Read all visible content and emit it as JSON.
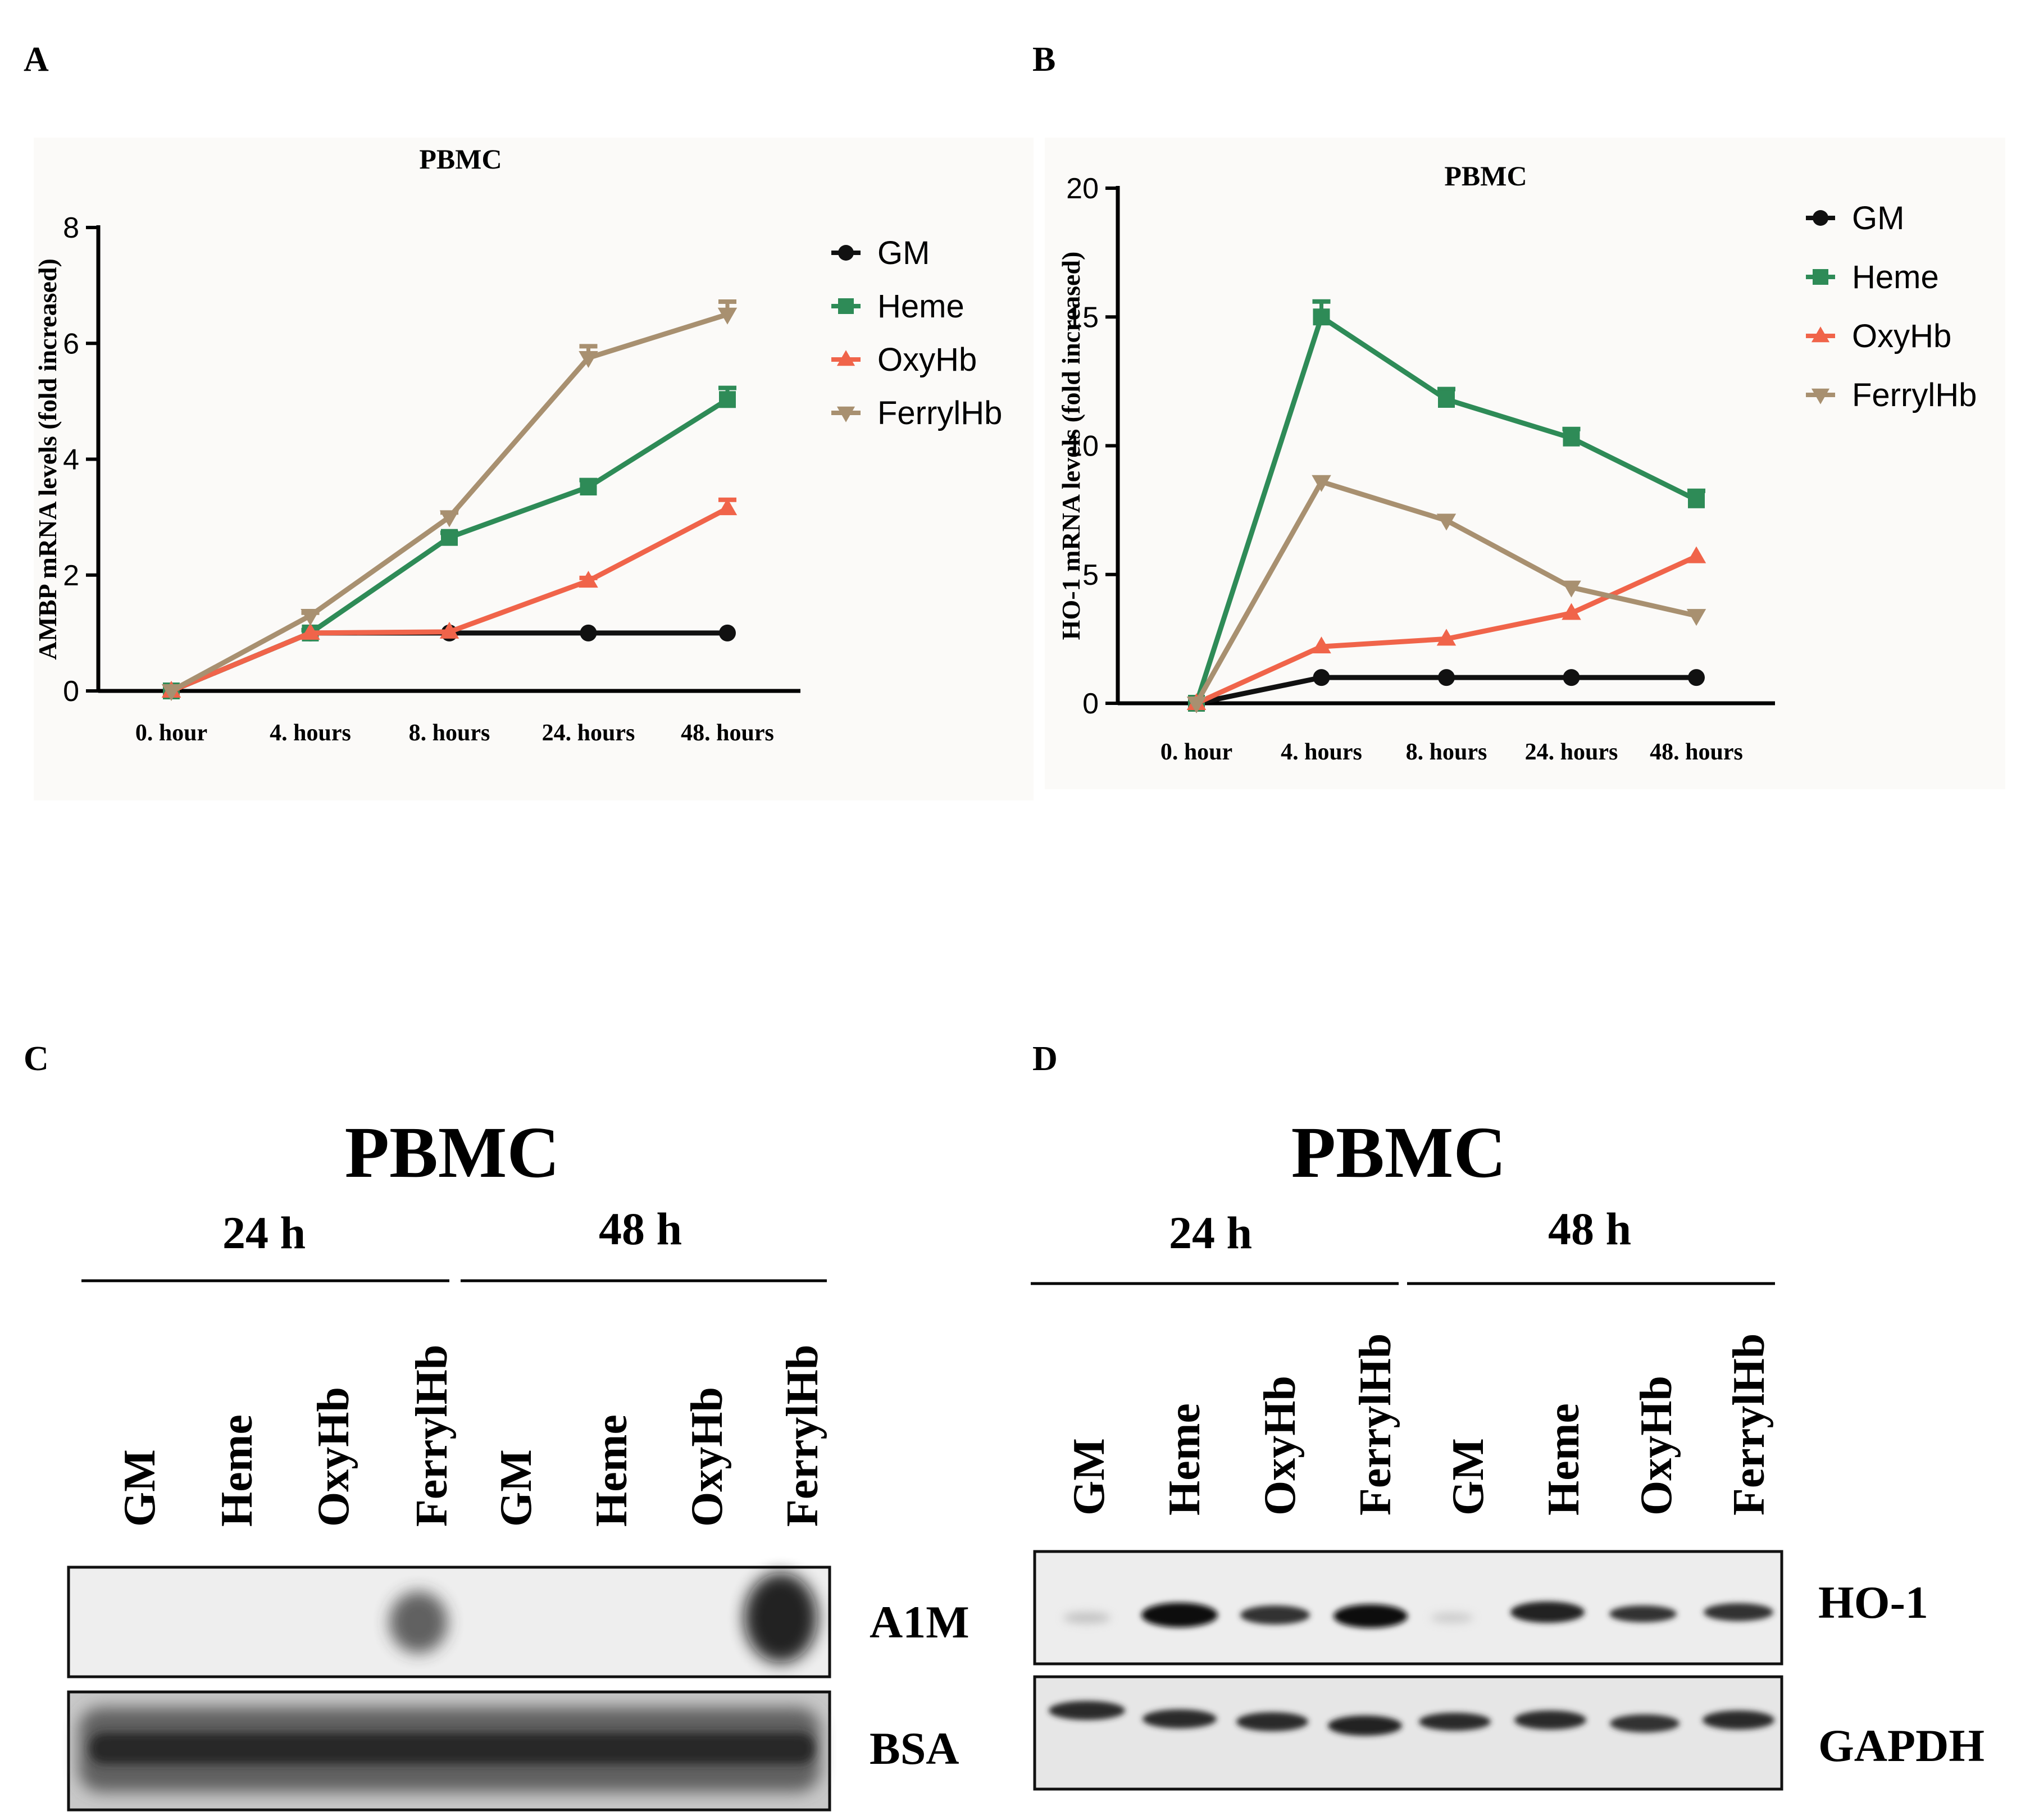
{
  "figure": {
    "panels": {
      "A": {
        "letter": "A"
      },
      "B": {
        "letter": "B"
      },
      "C": {
        "letter": "C",
        "title": "PBMC",
        "groups": [
          "24 h",
          "48 h"
        ],
        "lanes": [
          "GM",
          "Heme",
          "OxyHb",
          "FerrylHb",
          "GM",
          "Heme",
          "OxyHb",
          "FerrylHb"
        ],
        "blot_labels": [
          "A1M",
          "BSA"
        ]
      },
      "D": {
        "letter": "D",
        "title": "PBMC",
        "groups": [
          "24 h",
          "48 h"
        ],
        "lanes": [
          "GM",
          "Heme",
          "OxyHb",
          "FerrylHb",
          "GM",
          "Heme",
          "OxyHb",
          "FerrylHb"
        ],
        "blot_labels": [
          "HO-1",
          "GAPDH"
        ]
      }
    },
    "colors": {
      "GM": "#111111",
      "Heme": "#2e8b57",
      "OxyHb": "#f0644a",
      "FerrylHb": "#a89070"
    }
  },
  "chart_data": [
    {
      "type": "line",
      "title": "PBMC",
      "ylabel": "AMBP mRNA levels (fold increased)",
      "xlabel": "",
      "categories": [
        "0. hour",
        "4. hours",
        "8. hours",
        "24. hours",
        "48. hours"
      ],
      "ylim": [
        0,
        8
      ],
      "yticks": [
        0,
        2,
        4,
        6,
        8
      ],
      "legend_position": "right",
      "series": [
        {
          "name": "GM",
          "marker": "circle",
          "color": "#111111",
          "values": [
            0,
            1.0,
            1.0,
            1.0,
            1.0
          ],
          "errors": [
            0,
            0,
            0,
            0,
            0
          ]
        },
        {
          "name": "Heme",
          "marker": "square",
          "color": "#2e8b57",
          "values": [
            0,
            1.0,
            2.65,
            3.52,
            5.03
          ],
          "errors": [
            0,
            0.05,
            0.08,
            0.12,
            0.2
          ]
        },
        {
          "name": "OxyHb",
          "marker": "triangle-up",
          "color": "#f0644a",
          "values": [
            0,
            1.0,
            1.02,
            1.9,
            3.15
          ],
          "errors": [
            0,
            0,
            0,
            0.05,
            0.15
          ]
        },
        {
          "name": "FerrylHb",
          "marker": "triangle-down",
          "color": "#a89070",
          "values": [
            0,
            1.3,
            3.0,
            5.75,
            6.5
          ],
          "errors": [
            0,
            0.05,
            0.08,
            0.2,
            0.22
          ]
        }
      ]
    },
    {
      "type": "line",
      "title": "PBMC",
      "ylabel": "HO-1 mRNA levels (fold increased)",
      "xlabel": "",
      "categories": [
        "0. hour",
        "4. hours",
        "8. hours",
        "24. hours",
        "48. hours"
      ],
      "ylim": [
        0,
        20
      ],
      "yticks": [
        0,
        5,
        10,
        15,
        20
      ],
      "legend_position": "right",
      "series": [
        {
          "name": "GM",
          "marker": "circle",
          "color": "#111111",
          "values": [
            0,
            1.0,
            1.0,
            1.0,
            1.0
          ],
          "errors": [
            0,
            0,
            0,
            0,
            0
          ]
        },
        {
          "name": "Heme",
          "marker": "square",
          "color": "#2e8b57",
          "values": [
            0,
            15.0,
            11.8,
            10.3,
            7.9
          ],
          "errors": [
            0,
            0.6,
            0.4,
            0.35,
            0.35
          ]
        },
        {
          "name": "OxyHb",
          "marker": "triangle-up",
          "color": "#f0644a",
          "values": [
            0,
            2.2,
            2.5,
            3.5,
            5.7
          ],
          "errors": [
            0,
            0,
            0,
            0,
            0
          ]
        },
        {
          "name": "FerrylHb",
          "marker": "triangle-down",
          "color": "#a89070",
          "values": [
            0,
            8.6,
            7.1,
            4.5,
            3.4
          ],
          "errors": [
            0,
            0,
            0,
            0,
            0
          ]
        }
      ]
    }
  ]
}
